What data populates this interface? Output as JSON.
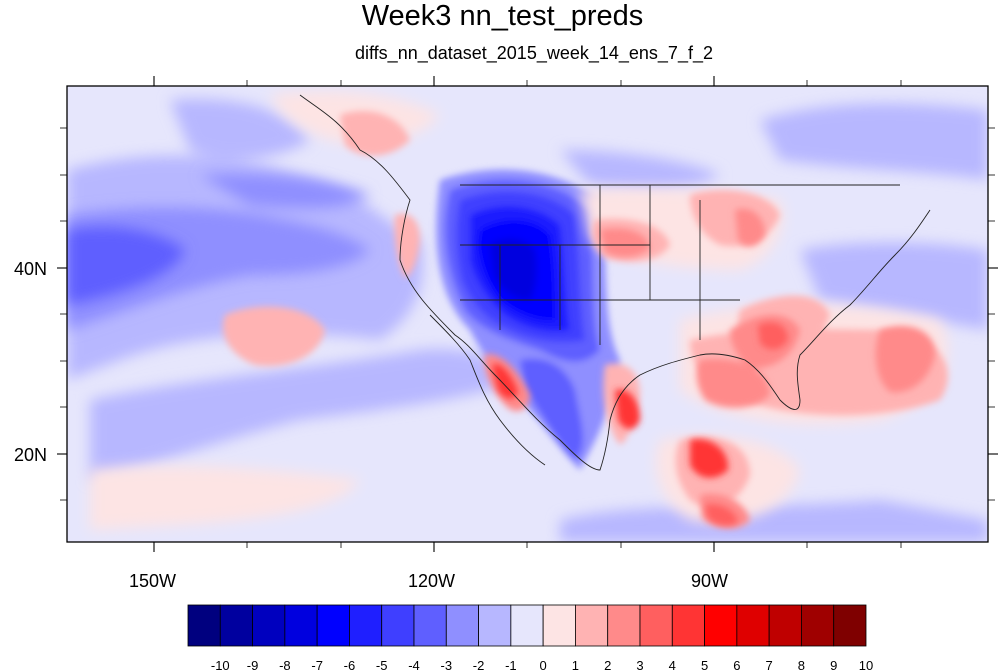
{
  "title": "Week3 nn_test_preds",
  "subtitle": "diffs_nn_dataset_2015_week_14_ens_7_f_2",
  "lat_labels": [
    "40N",
    "20N"
  ],
  "lon_labels": [
    "150W",
    "120W",
    "90W"
  ],
  "colorbar": {
    "tick_labels": [
      "-10",
      "-9",
      "-8",
      "-7",
      "-6",
      "-5",
      "-4",
      "-3",
      "-2",
      "-1",
      "0",
      "1",
      "2",
      "3",
      "4",
      "5",
      "6",
      "7",
      "8",
      "9",
      "10"
    ],
    "colors": [
      "#00007f",
      "#00009f",
      "#0000bf",
      "#0000df",
      "#0000ff",
      "#1f1fff",
      "#3f3fff",
      "#5f5fff",
      "#8f8fff",
      "#b7b7ff",
      "#e6e6fc",
      "#fde4e4",
      "#ffb3b3",
      "#ff8a8a",
      "#ff5f5f",
      "#ff3434",
      "#ff0000",
      "#df0000",
      "#bf0000",
      "#9f0000",
      "#7f0000"
    ]
  },
  "map": {
    "lon_range": [
      -159,
      -62
    ],
    "lat_range": [
      11,
      60
    ],
    "background_color": "#e6e6fc"
  }
}
